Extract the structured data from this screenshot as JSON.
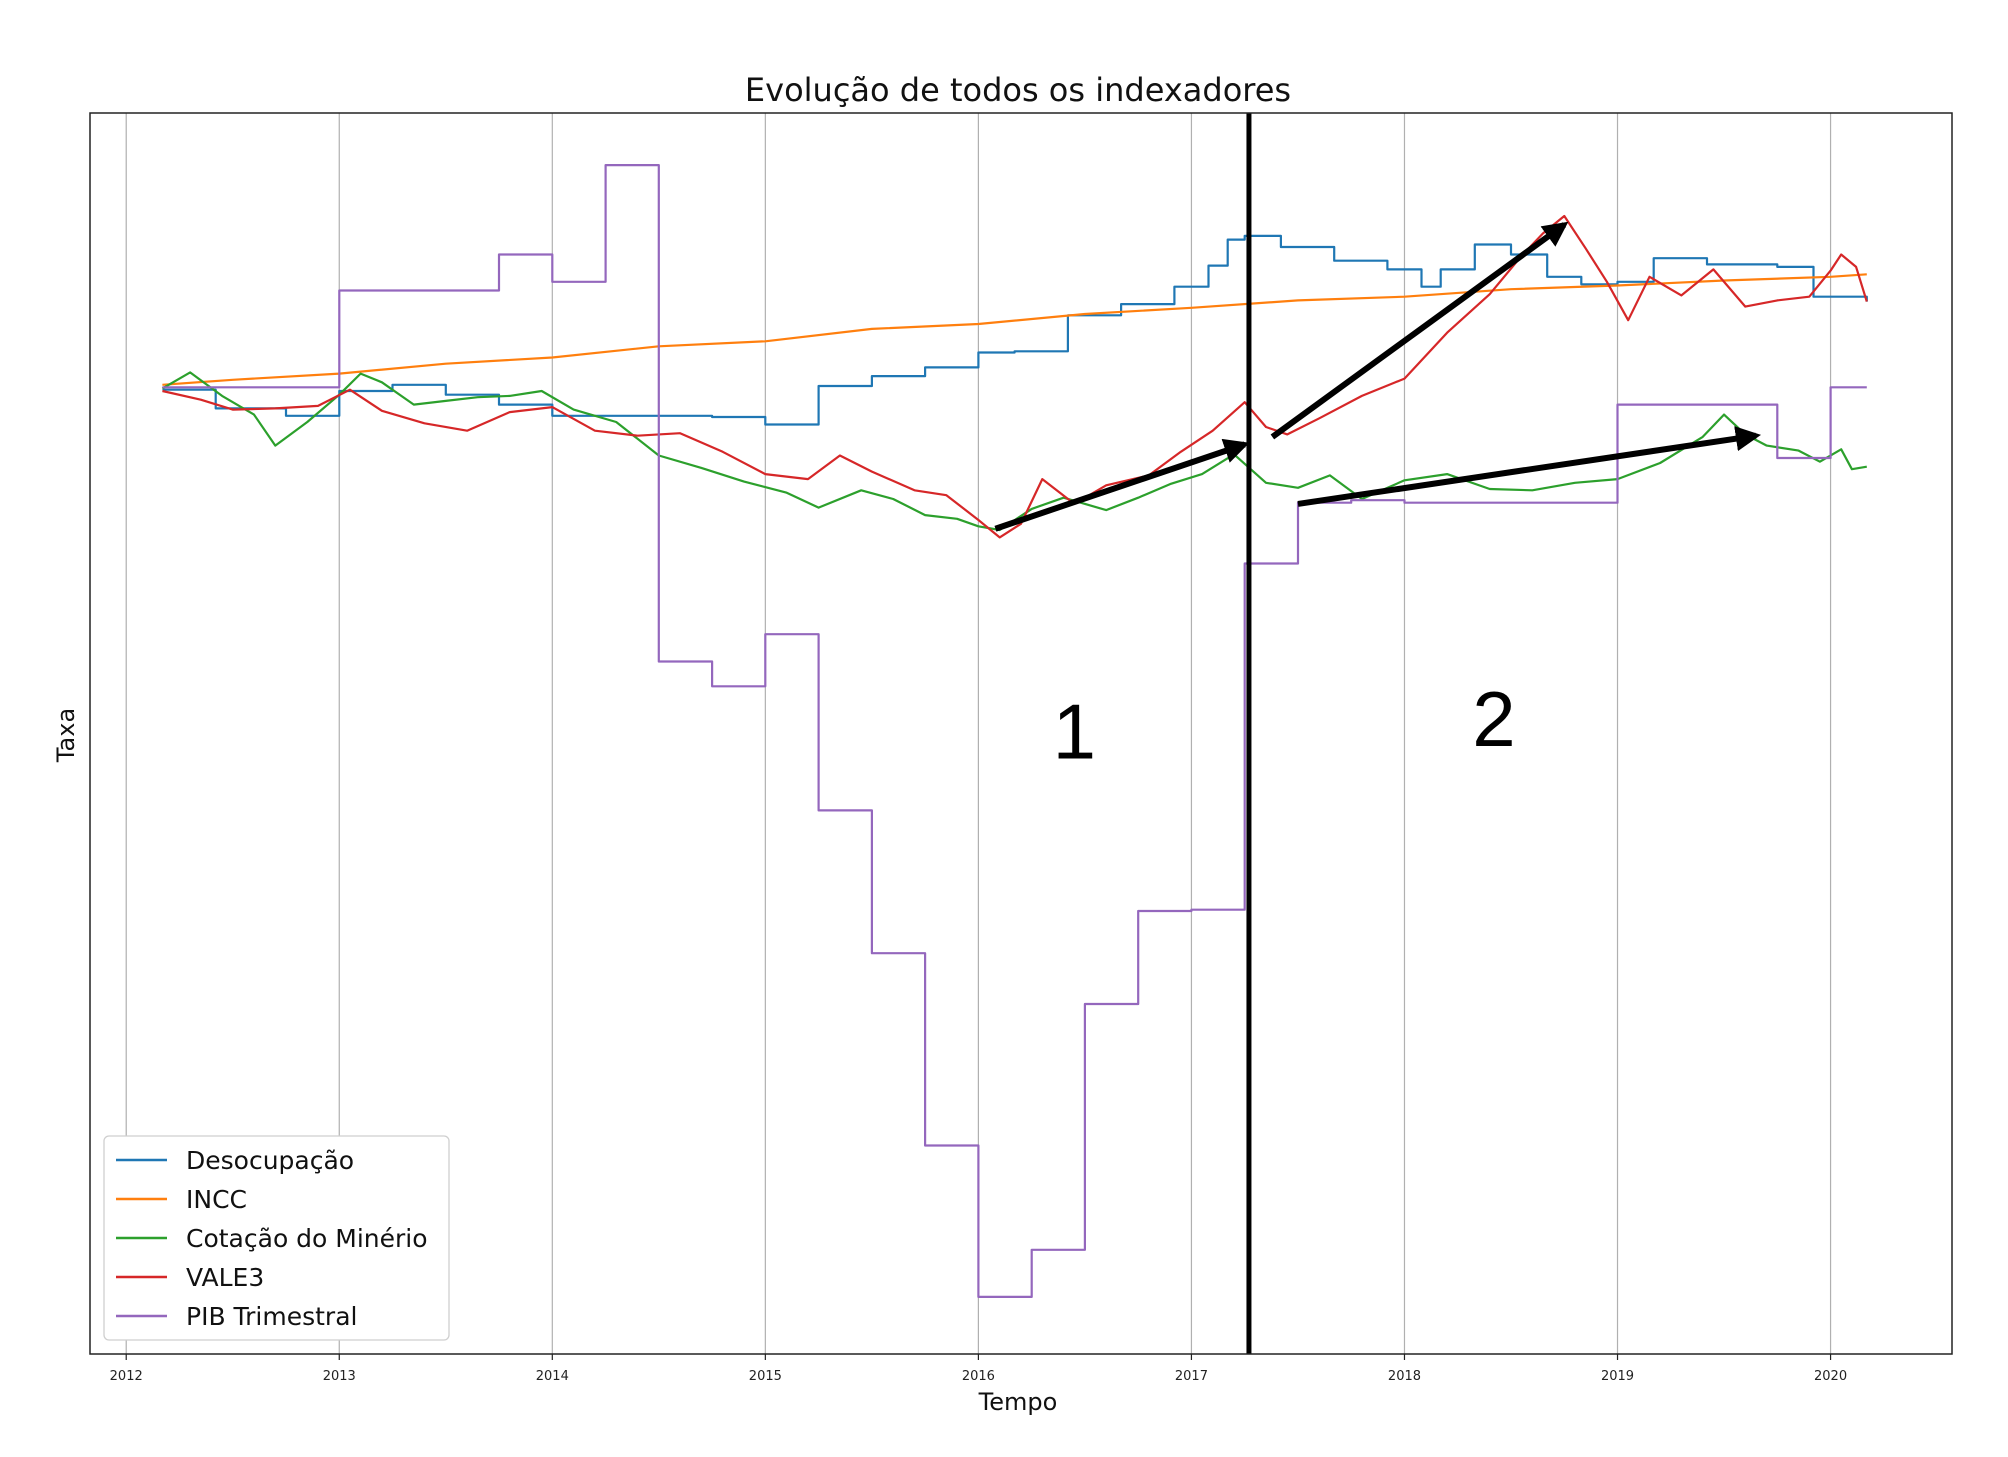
{
  "chart_data": {
    "type": "line",
    "title": "Evolução de todos os indexadores",
    "xlabel": "Tempo",
    "ylabel": "Taxa",
    "xlim": [
      2011.83,
      2020.57
    ],
    "ylim": [
      0,
      1
    ],
    "x_ticks": [
      "2012",
      "2013",
      "2014",
      "2015",
      "2016",
      "2017",
      "2018",
      "2019",
      "2020"
    ],
    "grid": "vertical",
    "legend_position": "lower-left",
    "series": [
      {
        "name": "Desocupação",
        "color": "#1f77b4",
        "step": true,
        "points": [
          [
            2012.17,
            0.777
          ],
          [
            2012.42,
            0.762
          ],
          [
            2012.75,
            0.756
          ],
          [
            2013.0,
            0.776
          ],
          [
            2013.25,
            0.781
          ],
          [
            2013.5,
            0.773
          ],
          [
            2013.75,
            0.765
          ],
          [
            2014.0,
            0.756
          ],
          [
            2014.25,
            0.756
          ],
          [
            2014.5,
            0.756
          ],
          [
            2014.75,
            0.755
          ],
          [
            2015.0,
            0.749
          ],
          [
            2015.25,
            0.78
          ],
          [
            2015.5,
            0.788
          ],
          [
            2015.75,
            0.795
          ],
          [
            2016.0,
            0.807
          ],
          [
            2016.17,
            0.808
          ],
          [
            2016.42,
            0.837
          ],
          [
            2016.67,
            0.846
          ],
          [
            2016.92,
            0.86
          ],
          [
            2017.08,
            0.877
          ],
          [
            2017.17,
            0.898
          ],
          [
            2017.25,
            0.901
          ],
          [
            2017.42,
            0.892
          ],
          [
            2017.67,
            0.881
          ],
          [
            2017.92,
            0.874
          ],
          [
            2018.08,
            0.86
          ],
          [
            2018.17,
            0.874
          ],
          [
            2018.33,
            0.894
          ],
          [
            2018.5,
            0.886
          ],
          [
            2018.67,
            0.868
          ],
          [
            2018.83,
            0.862
          ],
          [
            2019.0,
            0.864
          ],
          [
            2019.17,
            0.883
          ],
          [
            2019.42,
            0.878
          ],
          [
            2019.75,
            0.876
          ],
          [
            2019.92,
            0.852
          ],
          [
            2020.17,
            0.848
          ]
        ]
      },
      {
        "name": "INCC",
        "color": "#ff7f0e",
        "step": false,
        "points": [
          [
            2012.17,
            0.781
          ],
          [
            2012.5,
            0.785
          ],
          [
            2013.0,
            0.79
          ],
          [
            2013.5,
            0.798
          ],
          [
            2014.0,
            0.803
          ],
          [
            2014.5,
            0.812
          ],
          [
            2015.0,
            0.816
          ],
          [
            2015.5,
            0.826
          ],
          [
            2016.0,
            0.83
          ],
          [
            2016.5,
            0.838
          ],
          [
            2017.0,
            0.843
          ],
          [
            2017.5,
            0.849
          ],
          [
            2018.0,
            0.852
          ],
          [
            2018.5,
            0.858
          ],
          [
            2019.0,
            0.861
          ],
          [
            2019.5,
            0.865
          ],
          [
            2020.0,
            0.868
          ],
          [
            2020.17,
            0.87
          ]
        ]
      },
      {
        "name": "Cotação do Minério",
        "color": "#2ca02c",
        "step": false,
        "points": [
          [
            2012.17,
            0.778
          ],
          [
            2012.3,
            0.791
          ],
          [
            2012.45,
            0.772
          ],
          [
            2012.6,
            0.757
          ],
          [
            2012.7,
            0.732
          ],
          [
            2012.85,
            0.751
          ],
          [
            2013.0,
            0.773
          ],
          [
            2013.1,
            0.79
          ],
          [
            2013.2,
            0.783
          ],
          [
            2013.35,
            0.765
          ],
          [
            2013.5,
            0.768
          ],
          [
            2013.65,
            0.771
          ],
          [
            2013.8,
            0.772
          ],
          [
            2013.95,
            0.776
          ],
          [
            2014.1,
            0.761
          ],
          [
            2014.3,
            0.751
          ],
          [
            2014.5,
            0.724
          ],
          [
            2014.7,
            0.714
          ],
          [
            2014.9,
            0.703
          ],
          [
            2015.1,
            0.694
          ],
          [
            2015.25,
            0.682
          ],
          [
            2015.45,
            0.696
          ],
          [
            2015.6,
            0.689
          ],
          [
            2015.75,
            0.676
          ],
          [
            2015.9,
            0.673
          ],
          [
            2016.0,
            0.667
          ],
          [
            2016.1,
            0.664
          ],
          [
            2016.25,
            0.681
          ],
          [
            2016.4,
            0.69
          ],
          [
            2016.6,
            0.68
          ],
          [
            2016.75,
            0.69
          ],
          [
            2016.9,
            0.701
          ],
          [
            2017.05,
            0.709
          ],
          [
            2017.2,
            0.725
          ],
          [
            2017.35,
            0.702
          ],
          [
            2017.5,
            0.698
          ],
          [
            2017.65,
            0.708
          ],
          [
            2017.8,
            0.689
          ],
          [
            2018.0,
            0.704
          ],
          [
            2018.2,
            0.709
          ],
          [
            2018.4,
            0.697
          ],
          [
            2018.6,
            0.696
          ],
          [
            2018.8,
            0.702
          ],
          [
            2019.0,
            0.705
          ],
          [
            2019.2,
            0.718
          ],
          [
            2019.4,
            0.739
          ],
          [
            2019.5,
            0.757
          ],
          [
            2019.6,
            0.741
          ],
          [
            2019.7,
            0.732
          ],
          [
            2019.85,
            0.728
          ],
          [
            2019.95,
            0.719
          ],
          [
            2020.05,
            0.729
          ],
          [
            2020.1,
            0.713
          ],
          [
            2020.17,
            0.715
          ]
        ]
      },
      {
        "name": "VALE3",
        "color": "#d62728",
        "step": false,
        "points": [
          [
            2012.17,
            0.776
          ],
          [
            2012.35,
            0.769
          ],
          [
            2012.5,
            0.761
          ],
          [
            2012.7,
            0.762
          ],
          [
            2012.9,
            0.764
          ],
          [
            2013.05,
            0.777
          ],
          [
            2013.2,
            0.76
          ],
          [
            2013.4,
            0.75
          ],
          [
            2013.6,
            0.744
          ],
          [
            2013.8,
            0.759
          ],
          [
            2014.0,
            0.763
          ],
          [
            2014.2,
            0.744
          ],
          [
            2014.4,
            0.74
          ],
          [
            2014.6,
            0.742
          ],
          [
            2014.8,
            0.727
          ],
          [
            2015.0,
            0.709
          ],
          [
            2015.2,
            0.705
          ],
          [
            2015.35,
            0.724
          ],
          [
            2015.5,
            0.711
          ],
          [
            2015.7,
            0.696
          ],
          [
            2015.85,
            0.692
          ],
          [
            2016.0,
            0.672
          ],
          [
            2016.1,
            0.658
          ],
          [
            2016.2,
            0.669
          ],
          [
            2016.3,
            0.705
          ],
          [
            2016.45,
            0.685
          ],
          [
            2016.6,
            0.7
          ],
          [
            2016.8,
            0.708
          ],
          [
            2016.95,
            0.727
          ],
          [
            2017.1,
            0.744
          ],
          [
            2017.25,
            0.767
          ],
          [
            2017.35,
            0.747
          ],
          [
            2017.45,
            0.741
          ],
          [
            2017.6,
            0.754
          ],
          [
            2017.8,
            0.772
          ],
          [
            2018.0,
            0.786
          ],
          [
            2018.2,
            0.823
          ],
          [
            2018.4,
            0.854
          ],
          [
            2018.55,
            0.885
          ],
          [
            2018.65,
            0.903
          ],
          [
            2018.75,
            0.917
          ],
          [
            2018.85,
            0.891
          ],
          [
            2018.95,
            0.864
          ],
          [
            2019.05,
            0.833
          ],
          [
            2019.15,
            0.868
          ],
          [
            2019.3,
            0.853
          ],
          [
            2019.45,
            0.874
          ],
          [
            2019.6,
            0.844
          ],
          [
            2019.75,
            0.849
          ],
          [
            2019.9,
            0.852
          ],
          [
            2020.0,
            0.873
          ],
          [
            2020.05,
            0.886
          ],
          [
            2020.12,
            0.876
          ],
          [
            2020.17,
            0.848
          ]
        ]
      },
      {
        "name": "PIB Trimestral",
        "color": "#9467bd",
        "step": true,
        "points": [
          [
            2012.17,
            0.779
          ],
          [
            2013.0,
            0.857
          ],
          [
            2013.75,
            0.886
          ],
          [
            2014.0,
            0.864
          ],
          [
            2014.25,
            0.958
          ],
          [
            2014.5,
            0.558
          ],
          [
            2014.75,
            0.538
          ],
          [
            2015.0,
            0.58
          ],
          [
            2015.25,
            0.438
          ],
          [
            2015.5,
            0.323
          ],
          [
            2015.75,
            0.168
          ],
          [
            2016.0,
            0.046
          ],
          [
            2016.25,
            0.084
          ],
          [
            2016.5,
            0.282
          ],
          [
            2016.75,
            0.357
          ],
          [
            2017.0,
            0.358
          ],
          [
            2017.25,
            0.637
          ],
          [
            2017.5,
            0.686
          ],
          [
            2017.75,
            0.688
          ],
          [
            2018.0,
            0.686
          ],
          [
            2018.25,
            0.686
          ],
          [
            2018.5,
            0.686
          ],
          [
            2018.75,
            0.686
          ],
          [
            2019.0,
            0.765
          ],
          [
            2019.25,
            0.765
          ],
          [
            2019.5,
            0.765
          ],
          [
            2019.75,
            0.722
          ],
          [
            2020.0,
            0.779
          ],
          [
            2020.17,
            0.779
          ]
        ]
      }
    ],
    "annotations": {
      "divider_x": 2017.27,
      "zone_labels": [
        {
          "text": "1",
          "x": 2016.45,
          "y": 0.48
        },
        {
          "text": "2",
          "x": 2018.42,
          "y": 0.49
        }
      ],
      "arrows": [
        {
          "from": [
            2016.08,
            0.665
          ],
          "to": [
            2017.25,
            0.733
          ]
        },
        {
          "from": [
            2017.38,
            0.739
          ],
          "to": [
            2018.75,
            0.91
          ]
        },
        {
          "from": [
            2017.5,
            0.685
          ],
          "to": [
            2019.65,
            0.74
          ]
        }
      ]
    }
  }
}
